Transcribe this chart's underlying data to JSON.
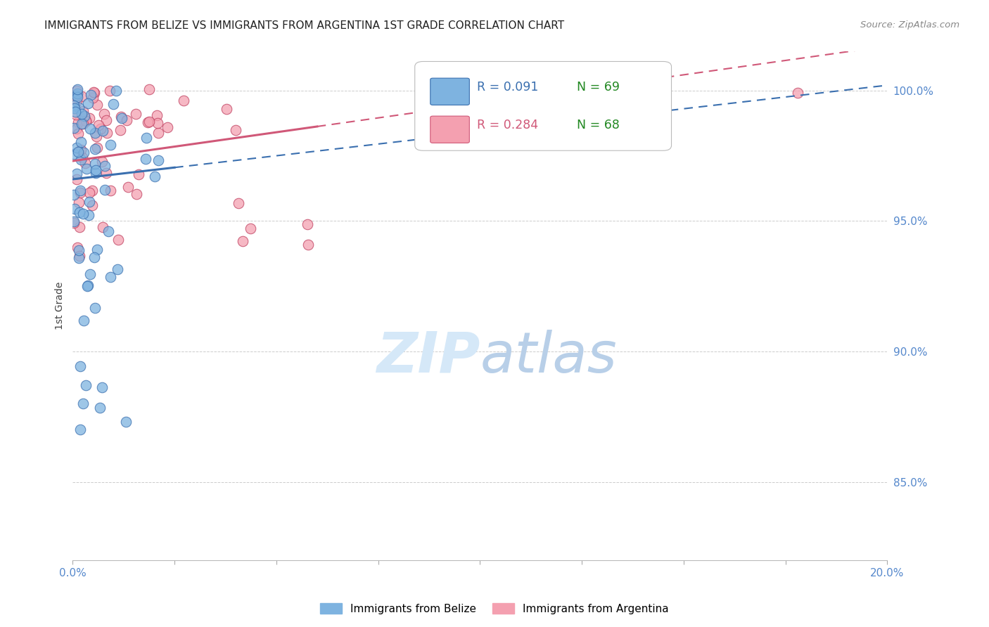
{
  "title": "IMMIGRANTS FROM BELIZE VS IMMIGRANTS FROM ARGENTINA 1ST GRADE CORRELATION CHART",
  "source": "Source: ZipAtlas.com",
  "ylabel": "1st Grade",
  "ylabel_ticks": [
    "100.0%",
    "95.0%",
    "90.0%",
    "85.0%"
  ],
  "ylabel_tick_values": [
    1.0,
    0.95,
    0.9,
    0.85
  ],
  "x_min": 0.0,
  "x_max": 0.2,
  "y_min": 0.82,
  "y_max": 1.015,
  "legend_r_belize": "R = 0.091",
  "legend_n_belize": "N = 69",
  "legend_r_argentina": "R = 0.284",
  "legend_n_argentina": "N = 68",
  "color_belize": "#7eb3e0",
  "color_argentina": "#f4a0b0",
  "color_belize_line": "#3a6faf",
  "color_argentina_line": "#d05878",
  "color_axis_labels": "#5588cc",
  "color_n_label": "#228822",
  "color_title": "#222222",
  "color_source": "#888888",
  "belize_intercept": 0.966,
  "belize_slope": 0.18,
  "argentina_intercept": 0.973,
  "argentina_slope": 0.22
}
